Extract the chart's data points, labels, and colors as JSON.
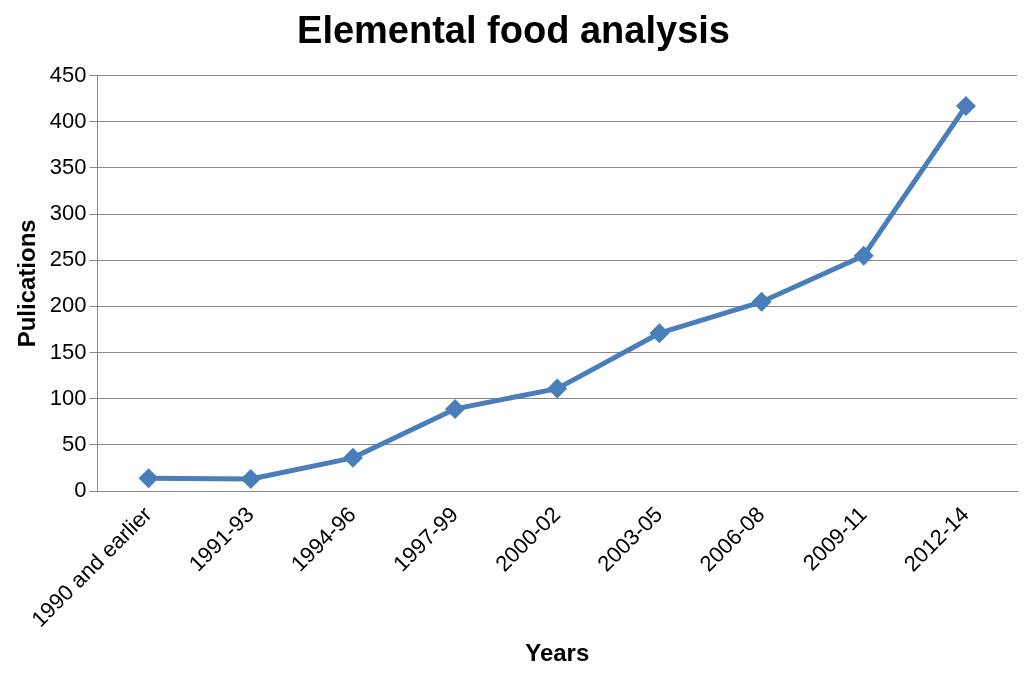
{
  "chart_data": {
    "type": "line",
    "title": "Elemental food analysis",
    "xlabel": "Years",
    "ylabel": "Pulications",
    "categories": [
      "1990 and earlier",
      "1991-93",
      "1994-96",
      "1997-99",
      "2000-02",
      "2003-05",
      "2006-08",
      "2009-11",
      "2012-14"
    ],
    "series": [
      {
        "color": "#4a7ebb",
        "values": [
          14,
          13,
          36,
          89,
          111,
          171,
          205,
          255,
          417
        ]
      }
    ],
    "ylim": [
      0,
      450
    ],
    "yticks": [
      0,
      50,
      100,
      150,
      200,
      250,
      300,
      350,
      400,
      450
    ],
    "grid": "y",
    "legend": false,
    "marker": "diamond",
    "line_style": "solid"
  }
}
